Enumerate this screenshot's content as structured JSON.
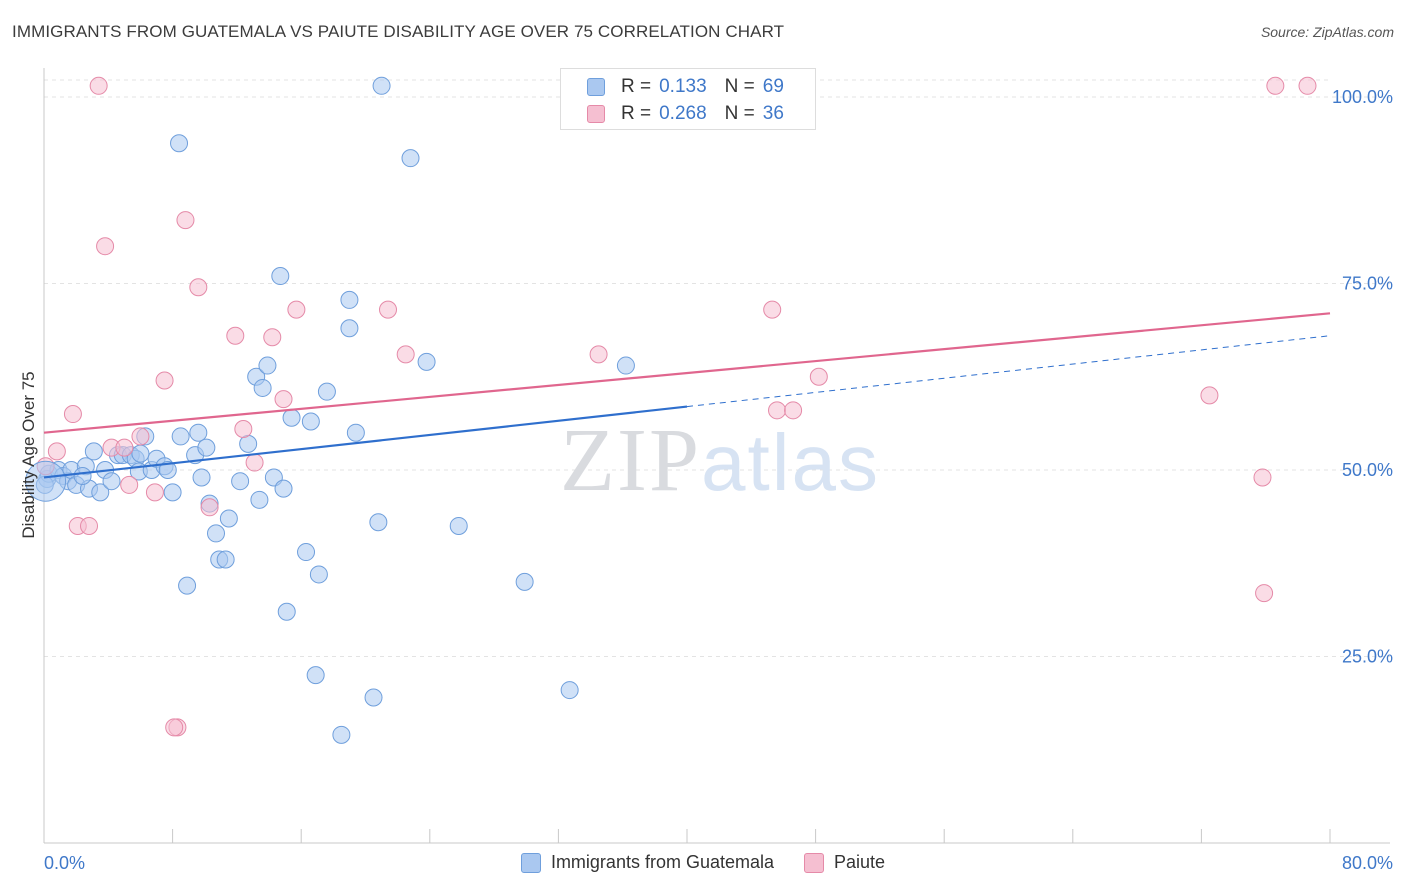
{
  "header": {
    "title": "IMMIGRANTS FROM GUATEMALA VS PAIUTE DISABILITY AGE OVER 75 CORRELATION CHART",
    "source": "Source: ZipAtlas.com"
  },
  "stats": [
    {
      "r_label": "R =",
      "r_value": "0.133",
      "n_label": "N =",
      "n_value": "69"
    },
    {
      "r_label": "R =",
      "r_value": "0.268",
      "n_label": "N =",
      "n_value": "36"
    }
  ],
  "chart_data": {
    "type": "scatter",
    "title": "IMMIGRANTS FROM GUATEMALA VS PAIUTE DISABILITY AGE OVER 75 CORRELATION CHART",
    "xlabel": "",
    "ylabel": "Disability Age Over 75",
    "xlim": [
      0,
      80
    ],
    "ylim": [
      0,
      105
    ],
    "x_tick_labels": [
      "0.0%",
      "80.0%"
    ],
    "y_tick_values": [
      25,
      50,
      75,
      100
    ],
    "y_tick_labels": [
      "25.0%",
      "50.0%",
      "75.0%",
      "100.0%"
    ],
    "grid": true,
    "legend_position": "bottom",
    "watermark": "ZIPatlas",
    "colors": {
      "blue_fill": "#aac8f0",
      "blue_stroke": "#6f9fdc",
      "blue_line": "#2f6fcd",
      "pink_fill": "#f5bfd1",
      "pink_stroke": "#e58aa8",
      "pink_line": "#e0668e",
      "tick_label": "#3f78c9",
      "grid": "#e3e3e3"
    },
    "series": [
      {
        "name": "Immigrants from Guatemala",
        "color": "blue",
        "points": [
          [
            0.2,
            48.8
          ],
          [
            0.3,
            49.5
          ],
          [
            0.9,
            50.0
          ],
          [
            1.2,
            49.2
          ],
          [
            1.5,
            48.5
          ],
          [
            1.7,
            50.0
          ],
          [
            2.0,
            48.0
          ],
          [
            2.6,
            50.5
          ],
          [
            2.8,
            47.5
          ],
          [
            3.1,
            52.5
          ],
          [
            3.5,
            47.0
          ],
          [
            3.8,
            50.0
          ],
          [
            4.2,
            48.5
          ],
          [
            4.6,
            52.0
          ],
          [
            4.9,
            52.0
          ],
          [
            5.4,
            52.0
          ],
          [
            5.7,
            51.5
          ],
          [
            5.9,
            49.8
          ],
          [
            6.3,
            54.5
          ],
          [
            6.7,
            50.0
          ],
          [
            7.0,
            51.5
          ],
          [
            7.5,
            50.5
          ],
          [
            7.7,
            50.0
          ],
          [
            8.0,
            47.0
          ],
          [
            8.4,
            93.8
          ],
          [
            8.5,
            54.5
          ],
          [
            8.9,
            34.5
          ],
          [
            9.4,
            52.0
          ],
          [
            9.6,
            55.0
          ],
          [
            9.8,
            49.0
          ],
          [
            10.1,
            53.0
          ],
          [
            10.3,
            45.5
          ],
          [
            10.7,
            41.5
          ],
          [
            10.9,
            38.0
          ],
          [
            11.3,
            38.0
          ],
          [
            11.5,
            43.5
          ],
          [
            12.2,
            48.5
          ],
          [
            12.7,
            53.5
          ],
          [
            13.2,
            62.5
          ],
          [
            13.4,
            46.0
          ],
          [
            13.6,
            61.0
          ],
          [
            13.9,
            64.0
          ],
          [
            14.3,
            49.0
          ],
          [
            14.7,
            76.0
          ],
          [
            14.9,
            47.5
          ],
          [
            15.1,
            31.0
          ],
          [
            15.4,
            57.0
          ],
          [
            16.3,
            39.0
          ],
          [
            16.6,
            56.5
          ],
          [
            16.9,
            22.5
          ],
          [
            17.1,
            36.0
          ],
          [
            17.6,
            60.5
          ],
          [
            18.5,
            14.5
          ],
          [
            19.0,
            72.8
          ],
          [
            19.0,
            69.0
          ],
          [
            19.4,
            55.0
          ],
          [
            20.5,
            19.5
          ],
          [
            20.8,
            43.0
          ],
          [
            21.0,
            101.5
          ],
          [
            22.8,
            91.8
          ],
          [
            23.8,
            64.5
          ],
          [
            25.8,
            42.5
          ],
          [
            29.9,
            35.0
          ],
          [
            32.7,
            20.5
          ],
          [
            34.0,
            101.5
          ],
          [
            36.2,
            64.0
          ],
          [
            0.05,
            48.0
          ],
          [
            6.0,
            52.2
          ],
          [
            2.4,
            49.2
          ]
        ]
      },
      {
        "name": "Paiute",
        "color": "pink",
        "points": [
          [
            0.1,
            50.5
          ],
          [
            0.8,
            52.5
          ],
          [
            1.8,
            57.5
          ],
          [
            2.1,
            42.5
          ],
          [
            2.8,
            42.5
          ],
          [
            3.4,
            101.5
          ],
          [
            3.8,
            80.0
          ],
          [
            4.2,
            53.0
          ],
          [
            5.3,
            48.0
          ],
          [
            6.0,
            54.5
          ],
          [
            6.9,
            47.0
          ],
          [
            7.5,
            62.0
          ],
          [
            8.3,
            15.5
          ],
          [
            8.8,
            83.5
          ],
          [
            9.6,
            74.5
          ],
          [
            10.3,
            45.0
          ],
          [
            11.9,
            68.0
          ],
          [
            12.4,
            55.5
          ],
          [
            13.1,
            51.0
          ],
          [
            14.2,
            67.8
          ],
          [
            14.9,
            59.5
          ],
          [
            15.7,
            71.5
          ],
          [
            21.4,
            71.5
          ],
          [
            22.5,
            65.5
          ],
          [
            34.5,
            65.5
          ],
          [
            45.3,
            71.5
          ],
          [
            45.6,
            58.0
          ],
          [
            46.6,
            58.0
          ],
          [
            48.2,
            62.5
          ],
          [
            72.5,
            60.0
          ],
          [
            75.8,
            49.0
          ],
          [
            75.9,
            33.5
          ],
          [
            76.6,
            101.5
          ],
          [
            78.6,
            101.5
          ],
          [
            5.0,
            53.0
          ],
          [
            8.1,
            15.5
          ]
        ]
      }
    ],
    "trend_lines": [
      {
        "series": "Immigrants from Guatemala",
        "x_start": 0,
        "y_start": 49.0,
        "x_end": 40.0,
        "y_end": 58.5,
        "dashed_to_x": 80,
        "dashed_to_y": 68.0
      },
      {
        "series": "Paiute",
        "x_start": 0,
        "y_start": 55.0,
        "x_end": 80,
        "y_end": 71.0
      }
    ]
  }
}
